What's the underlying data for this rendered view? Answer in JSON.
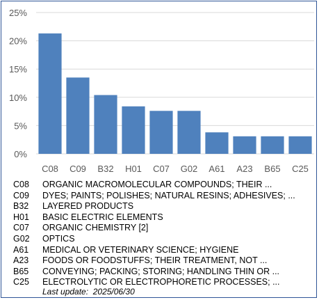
{
  "chart_data": {
    "type": "bar",
    "categories": [
      "C08",
      "C09",
      "B32",
      "H01",
      "C07",
      "G02",
      "A61",
      "A23",
      "B65",
      "C25"
    ],
    "values": [
      21.3,
      13.5,
      10.4,
      8.4,
      7.6,
      7.6,
      3.8,
      3.1,
      3.1,
      3.1
    ],
    "ylim": [
      0,
      25
    ],
    "yticks": [
      "0%",
      "5%",
      "10%",
      "15%",
      "20%",
      "25%"
    ],
    "ytick_values": [
      0,
      5,
      10,
      15,
      20,
      25
    ],
    "grid": true,
    "bar_color": "#4f81bd",
    "grid_color": "#d9d9d9",
    "title": "",
    "xlabel": "",
    "ylabel": ""
  },
  "legend": [
    {
      "code": "C08",
      "desc": "ORGANIC MACROMOLECULAR COMPOUNDS; THEIR ..."
    },
    {
      "code": "C09",
      "desc": "DYES; PAINTS; POLISHES; NATURAL RESINS; ADHESIVES; ..."
    },
    {
      "code": "B32",
      "desc": "LAYERED PRODUCTS"
    },
    {
      "code": "H01",
      "desc": "BASIC ELECTRIC ELEMENTS"
    },
    {
      "code": "C07",
      "desc": "ORGANIC CHEMISTRY [2]"
    },
    {
      "code": "G02",
      "desc": "OPTICS"
    },
    {
      "code": "A61",
      "desc": "MEDICAL OR VETERINARY SCIENCE; HYGIENE"
    },
    {
      "code": "A23",
      "desc": "FOODS OR FOODSTUFFS; THEIR TREATMENT, NOT ..."
    },
    {
      "code": "B65",
      "desc": "CONVEYING; PACKING; STORING; HANDLING THIN OR ..."
    },
    {
      "code": "C25",
      "desc": "ELECTROLYTIC OR ELECTROPHORETIC PROCESSES; ..."
    }
  ],
  "footer": {
    "last_update": "Last update:  2025/06/30"
  }
}
